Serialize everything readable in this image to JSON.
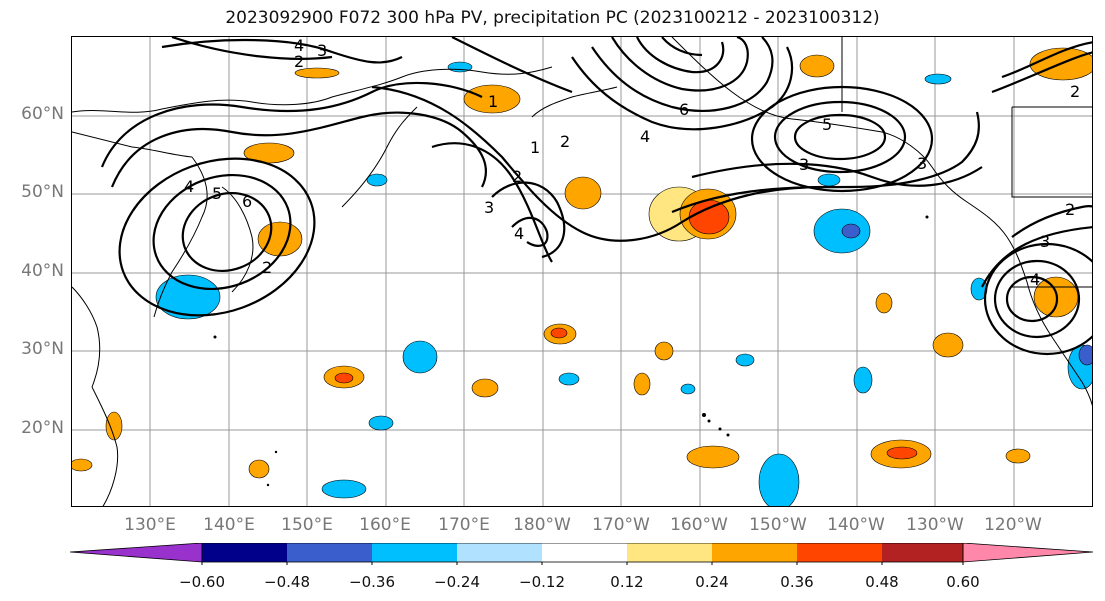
{
  "title": "2023092900 F072 300 hPa PV, precipitation PC (2023100212 - 2023100312)",
  "axes": {
    "lat_labels": [
      "60°N",
      "50°N",
      "40°N",
      "30°N",
      "20°N"
    ],
    "lon_labels": [
      "130°E",
      "140°E",
      "150°E",
      "160°E",
      "170°E",
      "180°W",
      "170°W",
      "160°W",
      "150°W",
      "140°W",
      "130°W",
      "120°W"
    ]
  },
  "colorbar": {
    "ticks": [
      "−0.60",
      "−0.48",
      "−0.36",
      "−0.24",
      "−0.12",
      "0.12",
      "0.24",
      "0.36",
      "0.48",
      "0.60"
    ],
    "colors": [
      "#9932CC",
      "#00008B",
      "#3A5FCD",
      "#00BFFF",
      "#B0E2FF",
      "#FFFFFF",
      "#FFE680",
      "#FFA500",
      "#FF4500",
      "#B22222",
      "#FF88AA"
    ]
  },
  "contour_labels": [
    "4",
    "3",
    "2",
    "1",
    "2",
    "6",
    "4",
    "5",
    "3",
    "1",
    "2",
    "3",
    "4",
    "4",
    "5",
    "6",
    "2",
    "2",
    "3",
    "4",
    "2",
    "3"
  ]
}
